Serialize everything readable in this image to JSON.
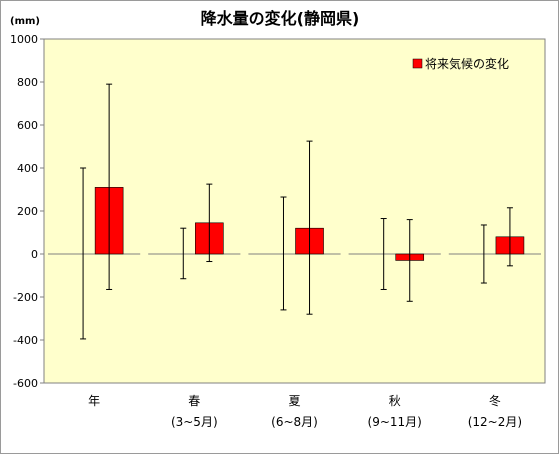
{
  "chart_data": {
    "type": "bar",
    "title": "降水量の変化(静岡県)",
    "ylabel": "(mm)",
    "xlabel": "",
    "ylim": [
      -600,
      1000
    ],
    "yticks": [
      1000,
      800,
      600,
      400,
      200,
      0,
      -200,
      -400,
      -600
    ],
    "grid": false,
    "legend_position": "top-right",
    "categories": [
      {
        "label": "年",
        "sublabel": ""
      },
      {
        "label": "春",
        "sublabel": "(3~5月)"
      },
      {
        "label": "夏",
        "sublabel": "(6~8月)"
      },
      {
        "label": "秋",
        "sublabel": "(9~11月)"
      },
      {
        "label": "冬",
        "sublabel": "(12~2月)"
      }
    ],
    "series": [
      {
        "name": "将来気候の変化",
        "color": "#ff0000",
        "values": [
          310,
          145,
          120,
          -30,
          80
        ],
        "error_low": [
          -165,
          -35,
          -280,
          -220,
          -55
        ],
        "error_high": [
          790,
          325,
          525,
          160,
          215
        ]
      }
    ],
    "year_to_year_range": {
      "low": [
        -395,
        -115,
        -260,
        -165,
        -135
      ],
      "high": [
        400,
        120,
        265,
        165,
        135
      ]
    },
    "colors": {
      "plot_background": "#ffffcc",
      "bar": "#ff0000"
    }
  }
}
